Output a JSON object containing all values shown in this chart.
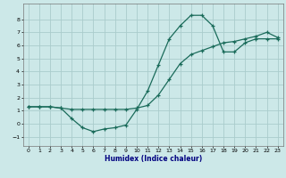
{
  "xlabel": "Humidex (Indice chaleur)",
  "bg_color": "#cce8e8",
  "grid_color": "#aacccc",
  "line_color": "#1a6b5a",
  "xlim": [
    -0.5,
    23.5
  ],
  "ylim": [
    -1.7,
    9.2
  ],
  "xticks": [
    0,
    1,
    2,
    3,
    4,
    5,
    6,
    7,
    8,
    9,
    10,
    11,
    12,
    13,
    14,
    15,
    16,
    17,
    18,
    19,
    20,
    21,
    22,
    23
  ],
  "yticks": [
    -1,
    0,
    1,
    2,
    3,
    4,
    5,
    6,
    7,
    8
  ],
  "line1_x": [
    0,
    1,
    2,
    3,
    4,
    5,
    6,
    7,
    8,
    9,
    10,
    11,
    12,
    13,
    14,
    15,
    16,
    17,
    18,
    19,
    20,
    21,
    22,
    23
  ],
  "line1_y": [
    1.3,
    1.3,
    1.3,
    1.2,
    0.4,
    -0.3,
    -0.6,
    -0.4,
    -0.3,
    -0.1,
    1.1,
    2.5,
    4.5,
    6.5,
    7.5,
    8.3,
    8.3,
    7.5,
    5.5,
    5.5,
    6.2,
    6.5,
    6.5,
    6.5
  ],
  "line2_x": [
    0,
    1,
    2,
    3,
    4,
    5,
    6,
    7,
    8,
    9,
    10,
    11,
    12,
    13,
    14,
    15,
    16,
    17,
    18,
    19,
    20,
    21,
    22,
    23
  ],
  "line2_y": [
    1.3,
    1.3,
    1.3,
    1.2,
    1.1,
    1.1,
    1.1,
    1.1,
    1.1,
    1.1,
    1.2,
    1.4,
    2.2,
    3.4,
    4.6,
    5.3,
    5.6,
    5.9,
    6.2,
    6.3,
    6.5,
    6.7,
    7.0,
    6.6
  ],
  "xlabel_color": "#000080",
  "xlabel_fontsize": 5.5
}
